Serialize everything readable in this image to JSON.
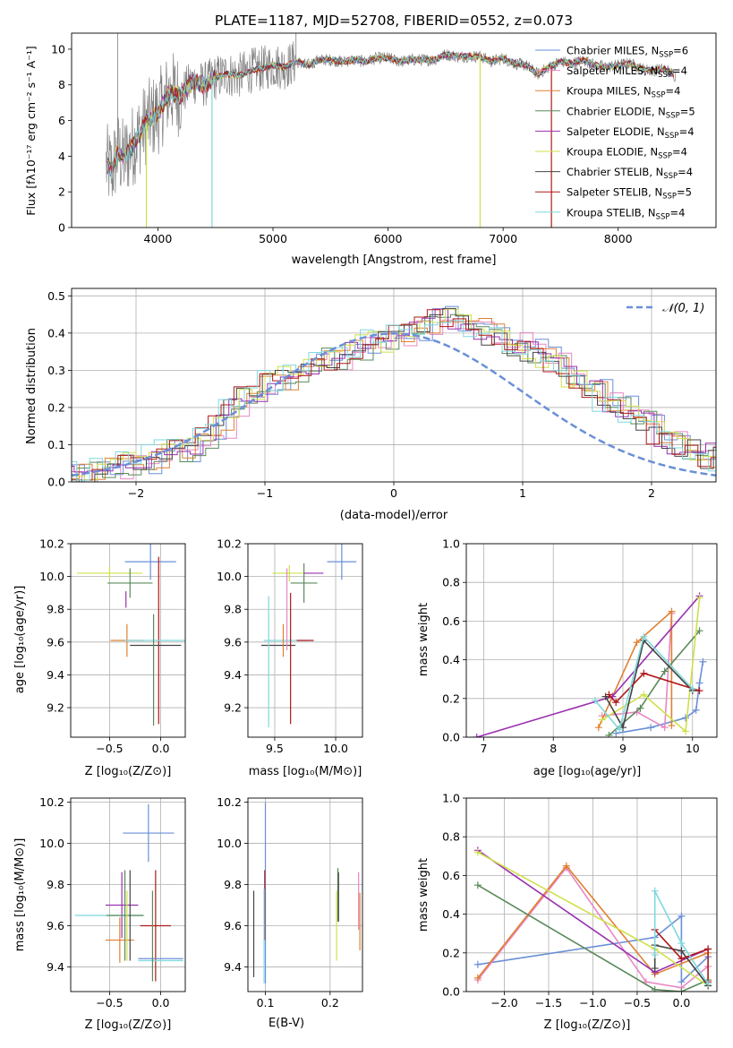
{
  "figure": {
    "title": "PLATE=1187, MJD=52708, FIBERID=0552, z=0.073"
  },
  "colors": {
    "Chabrier MILES": "#6a8fd8",
    "Salpeter MILES": "#e887c4",
    "Kroupa MILES": "#e08030",
    "Chabrier ELODIE": "#5a8a5a",
    "Salpeter ELODIE": "#9a30b0",
    "Kroupa ELODIE": "#cfe04a",
    "Chabrier STELIB": "#444444",
    "Salpeter STELIB": "#b01818",
    "Kroupa STELIB": "#7fd8dc",
    "data": "#808080"
  },
  "chart_data": [
    {
      "id": "spectrum",
      "type": "line",
      "xlabel": "wavelength [Angstrom, rest frame]",
      "ylabel": "Flux [fλ10⁻¹⁷ erg cm⁻² s⁻¹ A⁻¹]",
      "xlim": [
        3250,
        8850
      ],
      "ylim": [
        0,
        10.9
      ],
      "xticks": [
        4000,
        5000,
        6000,
        7000,
        8000
      ],
      "yticks": [
        0,
        2,
        4,
        6,
        8,
        10
      ],
      "grid": false,
      "legend_position": "top-right",
      "data_x": [
        3550,
        3600,
        3650,
        3700,
        3800,
        3900,
        4000,
        4100,
        4200,
        4300,
        4400,
        4500,
        4600,
        4700,
        4800,
        4900,
        5000,
        5100,
        5200,
        5300,
        5400,
        5500,
        5600,
        5700,
        5800,
        5900,
        6000,
        6100,
        6200,
        6300,
        6400,
        6500,
        6600,
        6700,
        6800,
        6900,
        7000,
        7100,
        7200,
        7300,
        7400,
        7500,
        7600,
        7700,
        7800,
        7900,
        8000,
        8100,
        8200,
        8300,
        8400,
        8500
      ],
      "data_y": [
        3.5,
        3.2,
        4.2,
        3.8,
        4.8,
        5.9,
        6.4,
        7.6,
        7.4,
        8.2,
        8.0,
        8.4,
        8.6,
        8.5,
        8.8,
        8.9,
        9.1,
        9.0,
        9.3,
        9.1,
        9.4,
        9.4,
        9.3,
        9.4,
        9.3,
        9.5,
        9.5,
        9.3,
        9.4,
        9.4,
        9.4,
        9.7,
        9.6,
        9.6,
        9.6,
        9.3,
        9.5,
        9.2,
        9.1,
        8.6,
        9.0,
        9.3,
        9.2,
        9.4,
        9.1,
        9.0,
        9.1,
        9.2,
        8.9,
        8.8,
        8.9,
        8.5
      ],
      "series": [
        {
          "name": "Chabrier MILES, N_SSP=6",
          "nssp": "6"
        },
        {
          "name": "Salpeter MILES, N_SSP=4",
          "nssp": "4"
        },
        {
          "name": "Kroupa MILES, N_SSP=4",
          "nssp": "4"
        },
        {
          "name": "Chabrier ELODIE, N_SSP=5",
          "nssp": "5"
        },
        {
          "name": "Salpeter ELODIE, N_SSP=4",
          "nssp": "4"
        },
        {
          "name": "Kroupa ELODIE, N_SSP=4",
          "nssp": "4"
        },
        {
          "name": "Chabrier STELIB, N_SSP=4",
          "nssp": "4"
        },
        {
          "name": "Salpeter STELIB, N_SSP=5",
          "nssp": "5"
        },
        {
          "name": "Kroupa STELIB, N_SSP=4",
          "nssp": "4"
        }
      ]
    },
    {
      "id": "residuals",
      "type": "histogram",
      "xlabel": "(data-model)/error",
      "ylabel": "Normed distribution",
      "xlim": [
        -2.5,
        2.5
      ],
      "ylim": [
        0,
        0.52
      ],
      "xticks": [
        -2,
        -1,
        0,
        1,
        2
      ],
      "yticks": [
        0.0,
        0.1,
        0.2,
        0.3,
        0.4,
        0.5
      ],
      "grid": true,
      "legend_position": "top-right",
      "legend_label": "𝒩(0, 1)",
      "bin_width": 0.1,
      "bin_start": -2.5,
      "profile": [
        0.02,
        0.02,
        0.03,
        0.03,
        0.04,
        0.05,
        0.05,
        0.07,
        0.08,
        0.08,
        0.1,
        0.12,
        0.15,
        0.19,
        0.23,
        0.25,
        0.27,
        0.28,
        0.29,
        0.31,
        0.34,
        0.33,
        0.35,
        0.36,
        0.38,
        0.38,
        0.39,
        0.41,
        0.43,
        0.45,
        0.44,
        0.43,
        0.41,
        0.39,
        0.38,
        0.37,
        0.35,
        0.33,
        0.32,
        0.29,
        0.27,
        0.25,
        0.22,
        0.2,
        0.18,
        0.16,
        0.13,
        0.11,
        0.09,
        0.08,
        0.07,
        0.06,
        0.05,
        0.05,
        0.04,
        0.03,
        0.03,
        0.03,
        0.02,
        0.02
      ]
    },
    {
      "id": "age_vs_Z",
      "type": "errorbar",
      "xlabel": "Z [log₁₀(Z/Z⊙)]",
      "ylabel": "age  [log₁₀(age/yr)]",
      "xlim": [
        -0.88,
        0.24
      ],
      "ylim": [
        9.02,
        10.2
      ],
      "xticks": [
        -0.5,
        0.0
      ],
      "yticks": [
        9.2,
        9.4,
        9.6,
        9.8,
        10.0,
        10.2
      ],
      "grid": true,
      "points": [
        {
          "model": "Chabrier MILES",
          "x": -0.1,
          "y": 10.09,
          "xerr": 0.25,
          "yerr": 0.11
        },
        {
          "model": "Kroupa ELODIE",
          "x": -0.5,
          "y": 10.02,
          "xerr": 0.32,
          "yerr": 0.04
        },
        {
          "model": "Chabrier ELODIE",
          "x": -0.3,
          "y": 9.96,
          "xerr": 0.22,
          "yerr": 0.09
        },
        {
          "model": "Salpeter ELODIE",
          "x": -0.34,
          "y": 9.86,
          "xerr": 0.0,
          "yerr": 0.05
        },
        {
          "model": "Kroupa MILES",
          "x": -0.33,
          "y": 9.61,
          "xerr": 0.16,
          "yerr": 0.1
        },
        {
          "model": "Salpeter STELIB",
          "x": -0.02,
          "y": 9.61,
          "xerr": 0.0,
          "yerr": 0.51
        },
        {
          "model": "Kroupa STELIB",
          "x": -0.05,
          "y": 9.61,
          "xerr": 0.3,
          "yerr": 0.0
        },
        {
          "model": "Chabrier STELIB",
          "x": -0.05,
          "y": 9.58,
          "xerr": 0.25,
          "yerr": 0.0
        },
        {
          "model": "Chabrier ELODIE",
          "x": -0.07,
          "y": 9.43,
          "xerr": 0.0,
          "yerr": 0.34
        }
      ]
    },
    {
      "id": "age_vs_mass",
      "type": "errorbar",
      "xlabel": "mass [log₁₀(M/M⊙)]",
      "ylabel": "",
      "xlim": [
        9.28,
        10.22
      ],
      "ylim": [
        9.02,
        10.2
      ],
      "xticks": [
        9.5,
        10.0
      ],
      "yticks": [
        9.2,
        9.4,
        9.6,
        9.8,
        10.0,
        10.2
      ],
      "grid": true,
      "points": [
        {
          "model": "Chabrier MILES",
          "x": 10.05,
          "y": 10.09,
          "xerr": 0.12,
          "yerr": 0.11
        },
        {
          "model": "Kroupa ELODIE",
          "x": 9.62,
          "y": 10.02,
          "xerr": 0.14,
          "yerr": 0.05
        },
        {
          "model": "Salpeter ELODIE",
          "x": 9.82,
          "y": 10.02,
          "xerr": 0.08,
          "yerr": 0.0
        },
        {
          "model": "Chabrier ELODIE",
          "x": 9.74,
          "y": 9.96,
          "xerr": 0.11,
          "yerr": 0.12
        },
        {
          "model": "Kroupa STELIB",
          "x": 9.6,
          "y": 9.61,
          "xerr": 0.19,
          "yerr": 0.0
        },
        {
          "model": "Salpeter STELIB",
          "x": 9.75,
          "y": 9.61,
          "xerr": 0.07,
          "yerr": 0.0
        },
        {
          "model": "Chabrier STELIB",
          "x": 9.53,
          "y": 9.58,
          "xerr": 0.14,
          "yerr": 0.0
        },
        {
          "model": "Kroupa MILES",
          "x": 9.57,
          "y": 9.61,
          "xerr": 0.0,
          "yerr": 0.1
        },
        {
          "model": "Salpeter STELIB",
          "x": 9.63,
          "y": 9.5,
          "xerr": 0.0,
          "yerr": 0.4
        },
        {
          "model": "Salpeter MILES",
          "x": 9.6,
          "y": 9.8,
          "xerr": 0.0,
          "yerr": 0.25
        },
        {
          "model": "Kroupa STELIB",
          "x": 9.45,
          "y": 9.48,
          "xerr": 0.0,
          "yerr": 0.4
        }
      ]
    },
    {
      "id": "weights_vs_age",
      "type": "line",
      "xlabel": "age  [log₁₀(age/yr)]",
      "ylabel": "mass weight",
      "xlim": [
        6.75,
        10.35
      ],
      "ylim": [
        0,
        1.0
      ],
      "xticks": [
        7,
        8,
        9,
        10
      ],
      "yticks": [
        0.0,
        0.2,
        0.4,
        0.6,
        0.8,
        1.0
      ],
      "grid": true,
      "series": [
        {
          "name": "Chabrier MILES",
          "x": [
            8.9,
            9.4,
            9.9,
            10.05,
            10.1,
            10.15
          ],
          "y": [
            0.02,
            0.05,
            0.1,
            0.14,
            0.28,
            0.39
          ]
        },
        {
          "name": "Salpeter MILES",
          "x": [
            8.7,
            9.2,
            9.6,
            9.7
          ],
          "y": [
            0.11,
            0.13,
            0.05,
            0.64
          ]
        },
        {
          "name": "Kroupa MILES",
          "x": [
            8.65,
            9.2,
            9.7,
            9.7
          ],
          "y": [
            0.05,
            0.49,
            0.65,
            0.06
          ]
        },
        {
          "name": "Chabrier ELODIE",
          "x": [
            8.8,
            9.25,
            9.6,
            10.1
          ],
          "y": [
            0.01,
            0.15,
            0.34,
            0.55
          ]
        },
        {
          "name": "Salpeter ELODIE",
          "x": [
            6.9,
            8.85,
            10.1
          ],
          "y": [
            0.0,
            0.21,
            0.73
          ]
        },
        {
          "name": "Kroupa ELODIE",
          "x": [
            8.7,
            9.3,
            9.9,
            10.1
          ],
          "y": [
            0.09,
            0.22,
            0.03,
            0.72
          ]
        },
        {
          "name": "Chabrier STELIB",
          "x": [
            8.75,
            9.0,
            9.3,
            10.0
          ],
          "y": [
            0.21,
            0.05,
            0.5,
            0.24
          ]
        },
        {
          "name": "Salpeter STELIB",
          "x": [
            8.8,
            8.9,
            9.3,
            10.1
          ],
          "y": [
            0.22,
            0.18,
            0.33,
            0.24
          ]
        },
        {
          "name": "Kroupa STELIB",
          "x": [
            8.6,
            8.95,
            9.3,
            10.0
          ],
          "y": [
            0.19,
            0.04,
            0.52,
            0.25
          ]
        }
      ]
    },
    {
      "id": "mass_vs_Z",
      "type": "errorbar",
      "xlabel": "Z [log₁₀(Z/Z⊙)]",
      "ylabel": "mass [log₁₀(M/M⊙)]",
      "xlim": [
        -0.88,
        0.24
      ],
      "ylim": [
        9.28,
        10.22
      ],
      "xticks": [
        -0.5,
        0.0
      ],
      "yticks": [
        9.4,
        9.6,
        9.8,
        10.0,
        10.2
      ],
      "grid": true,
      "points": [
        {
          "model": "Chabrier MILES",
          "x": -0.12,
          "y": 10.05,
          "xerr": 0.25,
          "yerr": 0.14
        },
        {
          "model": "Salpeter ELODIE",
          "x": -0.38,
          "y": 9.7,
          "xerr": 0.16,
          "yerr": 0.16
        },
        {
          "model": "Kroupa STELIB",
          "x": -0.5,
          "y": 9.65,
          "xerr": 0.34,
          "yerr": 0.0
        },
        {
          "model": "Chabrier ELODIE",
          "x": -0.35,
          "y": 9.65,
          "xerr": 0.18,
          "yerr": 0.22
        },
        {
          "model": "Salpeter STELIB",
          "x": -0.05,
          "y": 9.6,
          "xerr": 0.15,
          "yerr": 0.27
        },
        {
          "model": "Kroupa MILES",
          "x": -0.4,
          "y": 9.53,
          "xerr": 0.14,
          "yerr": 0.11
        },
        {
          "model": "Kroupa ELODIE",
          "x": -0.33,
          "y": 9.6,
          "xerr": 0.0,
          "yerr": 0.17
        },
        {
          "model": "Chabrier STELIB",
          "x": -0.3,
          "y": 9.65,
          "xerr": 0.0,
          "yerr": 0.22
        },
        {
          "model": "Kroupa STELIB",
          "x": 0.0,
          "y": 9.43,
          "xerr": 0.22,
          "yerr": 0.0
        },
        {
          "model": "Chabrier MILES",
          "x": 0.0,
          "y": 9.44,
          "xerr": 0.22,
          "yerr": 0.0
        },
        {
          "model": "Chabrier ELODIE",
          "x": -0.08,
          "y": 9.55,
          "xerr": 0.0,
          "yerr": 0.22
        }
      ]
    },
    {
      "id": "mass_vs_ebv",
      "type": "errorbar",
      "xlabel": "E(B-V)",
      "ylabel": "",
      "xlim": [
        0.073,
        0.25
      ],
      "ylim": [
        9.28,
        10.22
      ],
      "xticks": [
        0.1,
        0.2
      ],
      "yticks": [
        9.4,
        9.6,
        9.8,
        10.0,
        10.2
      ],
      "grid": true,
      "points": [
        {
          "model": "Chabrier MILES",
          "x": 0.1,
          "y": 9.76,
          "xerr": 0.0,
          "yerr": 0.44
        },
        {
          "model": "Salpeter STELIB",
          "x": 0.099,
          "y": 9.7,
          "xerr": 0.0,
          "yerr": 0.17
        },
        {
          "model": "Chabrier STELIB",
          "x": 0.082,
          "y": 9.56,
          "xerr": 0.0,
          "yerr": 0.21
        },
        {
          "model": "Kroupa STELIB",
          "x": 0.098,
          "y": 9.55,
          "xerr": 0.0,
          "yerr": 0.23
        },
        {
          "model": "Chabrier ELODIE",
          "x": 0.212,
          "y": 9.75,
          "xerr": 0.0,
          "yerr": 0.13
        },
        {
          "model": "Chabrier STELIB",
          "x": 0.213,
          "y": 9.74,
          "xerr": 0.0,
          "yerr": 0.12
        },
        {
          "model": "Kroupa ELODIE",
          "x": 0.21,
          "y": 9.6,
          "xerr": 0.0,
          "yerr": 0.17
        },
        {
          "model": "Salpeter MILES",
          "x": 0.244,
          "y": 9.72,
          "xerr": 0.0,
          "yerr": 0.14
        },
        {
          "model": "Kroupa MILES",
          "x": 0.246,
          "y": 9.62,
          "xerr": 0.0,
          "yerr": 0.14
        }
      ]
    },
    {
      "id": "weights_vs_Z",
      "type": "line",
      "xlabel": "Z [log₁₀(Z/Z⊙)]",
      "ylabel": "mass weight",
      "xlim": [
        -2.43,
        0.4
      ],
      "ylim": [
        0,
        1.0
      ],
      "xticks": [
        -2.0,
        -1.5,
        -1.0,
        -0.5,
        0.0
      ],
      "yticks": [
        0.0,
        0.2,
        0.4,
        0.6,
        0.8,
        1.0
      ],
      "grid": true,
      "series": [
        {
          "name": "Chabrier MILES",
          "x": [
            -2.3,
            -0.3,
            0.0,
            0.0,
            0.3
          ],
          "y": [
            0.14,
            0.28,
            0.39,
            0.05,
            0.18
          ]
        },
        {
          "name": "Salpeter MILES",
          "x": [
            -2.3,
            -1.3,
            -0.4,
            0.0,
            0.3
          ],
          "y": [
            0.06,
            0.64,
            0.05,
            0.02,
            0.13
          ]
        },
        {
          "name": "Kroupa MILES",
          "x": [
            -2.3,
            -1.3,
            -0.3,
            0.3
          ],
          "y": [
            0.07,
            0.65,
            0.09,
            0.2
          ]
        },
        {
          "name": "Chabrier ELODIE",
          "x": [
            -2.3,
            -0.3,
            0.0,
            0.3
          ],
          "y": [
            0.55,
            0.01,
            0.0,
            0.06
          ]
        },
        {
          "name": "Salpeter ELODIE",
          "x": [
            -2.3,
            -0.3,
            0.3
          ],
          "y": [
            0.73,
            0.1,
            0.22
          ]
        },
        {
          "name": "Kroupa ELODIE",
          "x": [
            -2.3,
            -0.3,
            0.3
          ],
          "y": [
            0.72,
            0.22,
            0.03
          ]
        },
        {
          "name": "Chabrier STELIB",
          "x": [
            -0.3,
            -0.3,
            0.0,
            0.3
          ],
          "y": [
            0.12,
            0.24,
            0.21,
            0.03
          ]
        },
        {
          "name": "Salpeter STELIB",
          "x": [
            -0.3,
            0.0,
            0.3,
            0.3
          ],
          "y": [
            0.32,
            0.17,
            0.22,
            0.05
          ]
        },
        {
          "name": "Kroupa STELIB",
          "x": [
            -0.3,
            -0.3,
            0.0,
            0.3
          ],
          "y": [
            0.19,
            0.52,
            0.25,
            0.04
          ]
        }
      ]
    }
  ]
}
